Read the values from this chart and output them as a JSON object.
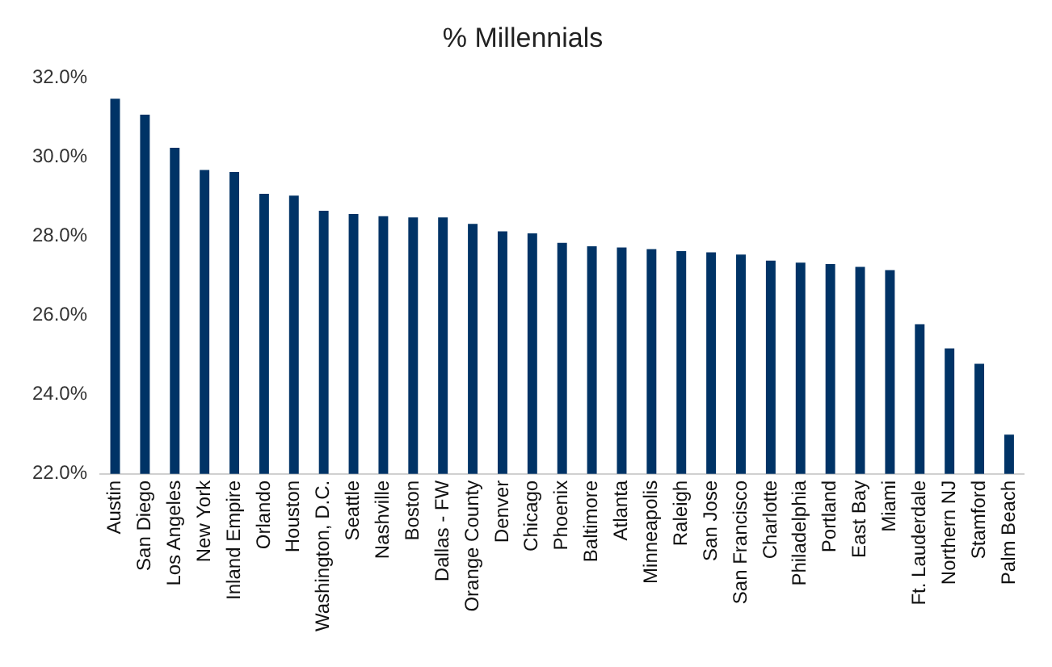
{
  "chart_data": {
    "type": "bar",
    "title": "% Millennials",
    "categories": [
      "Austin",
      "San Diego",
      "Los Angeles",
      "New York",
      "Inland Empire",
      "Orlando",
      "Houston",
      "Washington, D.C.",
      "Seattle",
      "Nashville",
      "Boston",
      "Dallas - FW",
      "Orange County",
      "Denver",
      "Chicago",
      "Phoenix",
      "Baltimore",
      "Atlanta",
      "Minneapolis",
      "Raleigh",
      "San Jose",
      "San Francisco",
      "Charlotte",
      "Philadelphia",
      "Portland",
      "East Bay",
      "Miami",
      "Ft. Lauderdale",
      "Northern NJ",
      "Stamford",
      "Palm Beach"
    ],
    "values": [
      31.48,
      31.08,
      30.24,
      29.68,
      29.63,
      29.08,
      29.03,
      28.65,
      28.57,
      28.51,
      28.48,
      28.48,
      28.32,
      28.13,
      28.08,
      27.84,
      27.75,
      27.72,
      27.68,
      27.63,
      27.6,
      27.54,
      27.39,
      27.34,
      27.3,
      27.23,
      27.15,
      25.78,
      25.17,
      24.78,
      22.99
    ],
    "color": "#003366",
    "ylim": [
      22,
      32
    ],
    "yticks": [
      {
        "value": 22,
        "label": "22.0%"
      },
      {
        "value": 24,
        "label": "24.0%"
      },
      {
        "value": 26,
        "label": "26.0%"
      },
      {
        "value": 28,
        "label": "28.0%"
      },
      {
        "value": 30,
        "label": "30.0%"
      },
      {
        "value": 32,
        "label": "32.0%"
      }
    ],
    "grid": false,
    "legend": false
  }
}
